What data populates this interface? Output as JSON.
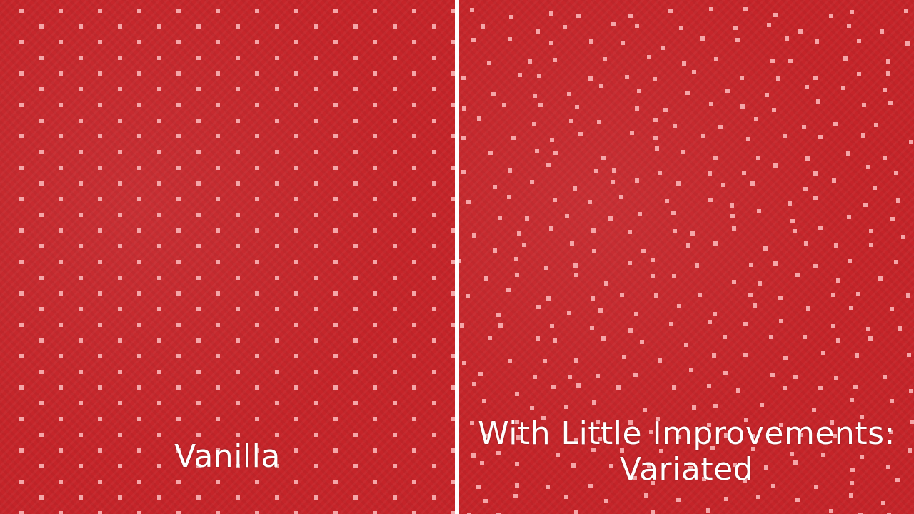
{
  "colors": {
    "background": "#c52429",
    "dot": "#f4a6a8",
    "divider": "#ffffff",
    "caption": "#ffffff"
  },
  "panels": {
    "left": {
      "caption": "Vanilla",
      "pattern": "regular"
    },
    "right": {
      "caption_line1": "With Little Improvements:",
      "caption_line2": "Variated",
      "pattern": "variated"
    }
  }
}
